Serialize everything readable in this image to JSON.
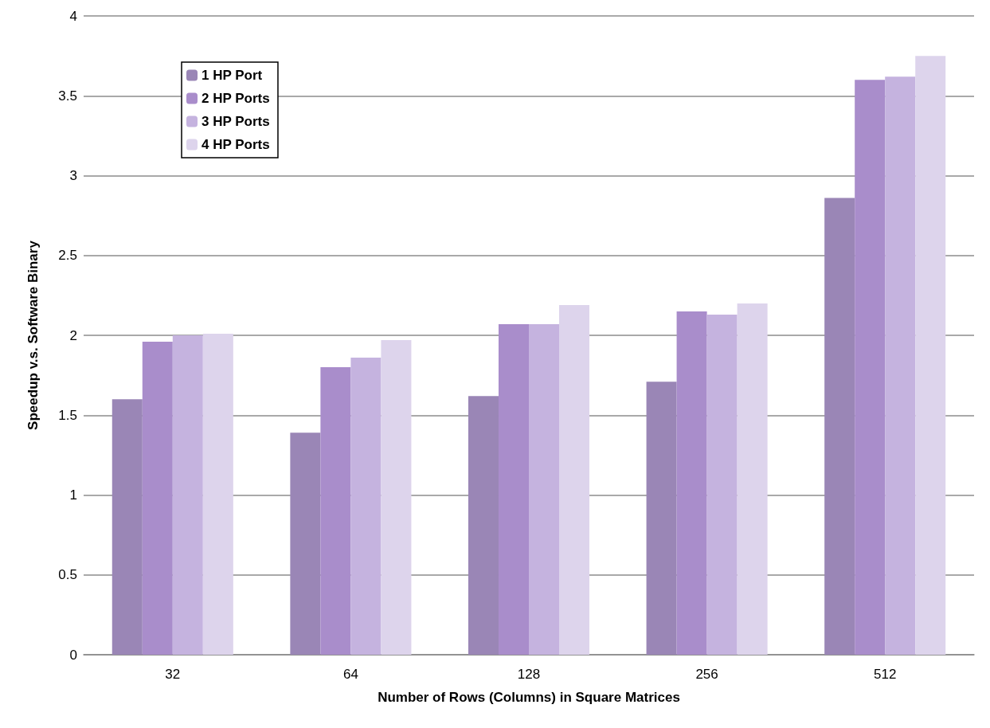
{
  "chart_data": {
    "type": "bar",
    "xlabel": "Number of Rows (Columns) in Square Matrices",
    "ylabel": "Speedup v.s. Software Binary",
    "categories": [
      "32",
      "64",
      "128",
      "256",
      "512"
    ],
    "series": [
      {
        "name": "1 HP Port",
        "color": "#9a86b6",
        "values": [
          1.6,
          1.39,
          1.62,
          1.71,
          2.86
        ]
      },
      {
        "name": "2 HP Ports",
        "color": "#a98dcb",
        "values": [
          1.96,
          1.8,
          2.07,
          2.15,
          3.6
        ]
      },
      {
        "name": "3 HP Ports",
        "color": "#c5b3df",
        "values": [
          2.0,
          1.86,
          2.07,
          2.13,
          3.62
        ]
      },
      {
        "name": "4 HP Ports",
        "color": "#ddd4ec",
        "values": [
          2.01,
          1.97,
          2.19,
          2.2,
          3.75
        ]
      }
    ],
    "ylim": [
      0,
      4
    ],
    "yticks": [
      0,
      0.5,
      1,
      1.5,
      2,
      2.5,
      3,
      3.5,
      4
    ],
    "grid": "y",
    "legend": "top left"
  }
}
